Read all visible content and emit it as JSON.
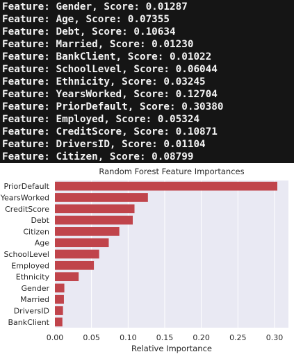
{
  "console": {
    "lines": [
      "Feature: Gender, Score: 0.01287",
      "Feature: Age, Score: 0.07355",
      "Feature: Debt, Score: 0.10634",
      "Feature: Married, Score: 0.01230",
      "Feature: BankClient, Score: 0.01022",
      "Feature: SchoolLevel, Score: 0.06044",
      "Feature: Ethnicity, Score: 0.03245",
      "Feature: YearsWorked, Score: 0.12704",
      "Feature: PriorDefault, Score: 0.30380",
      "Feature: Employed, Score: 0.05324",
      "Feature: CreditScore, Score: 0.10871",
      "Feature: DriversID, Score: 0.01104",
      "Feature: Citizen, Score: 0.08799"
    ]
  },
  "chart_data": {
    "type": "bar",
    "orientation": "horizontal",
    "title": "Random Forest Feature Importances",
    "xlabel": "Relative Importance",
    "ylabel": "",
    "categories": [
      "PriorDefault",
      "YearsWorked",
      "CreditScore",
      "Debt",
      "Citizen",
      "Age",
      "SchoolLevel",
      "Employed",
      "Ethnicity",
      "Gender",
      "Married",
      "DriversID",
      "BankClient"
    ],
    "values": [
      0.3038,
      0.12704,
      0.10871,
      0.10634,
      0.08799,
      0.07355,
      0.06044,
      0.05324,
      0.03245,
      0.01287,
      0.0123,
      0.01104,
      0.01022
    ],
    "xticks": [
      "0.00",
      "0.05",
      "0.10",
      "0.15",
      "0.20",
      "0.25",
      "0.30"
    ],
    "xtick_values": [
      0,
      0.05,
      0.1,
      0.15,
      0.2,
      0.25,
      0.3
    ],
    "xlim": [
      0,
      0.319
    ],
    "grid": true,
    "colors": {
      "bar": "#c0444b",
      "plot_background": "#e9e9f3",
      "grid": "#ffffff",
      "text": "#262626"
    }
  }
}
